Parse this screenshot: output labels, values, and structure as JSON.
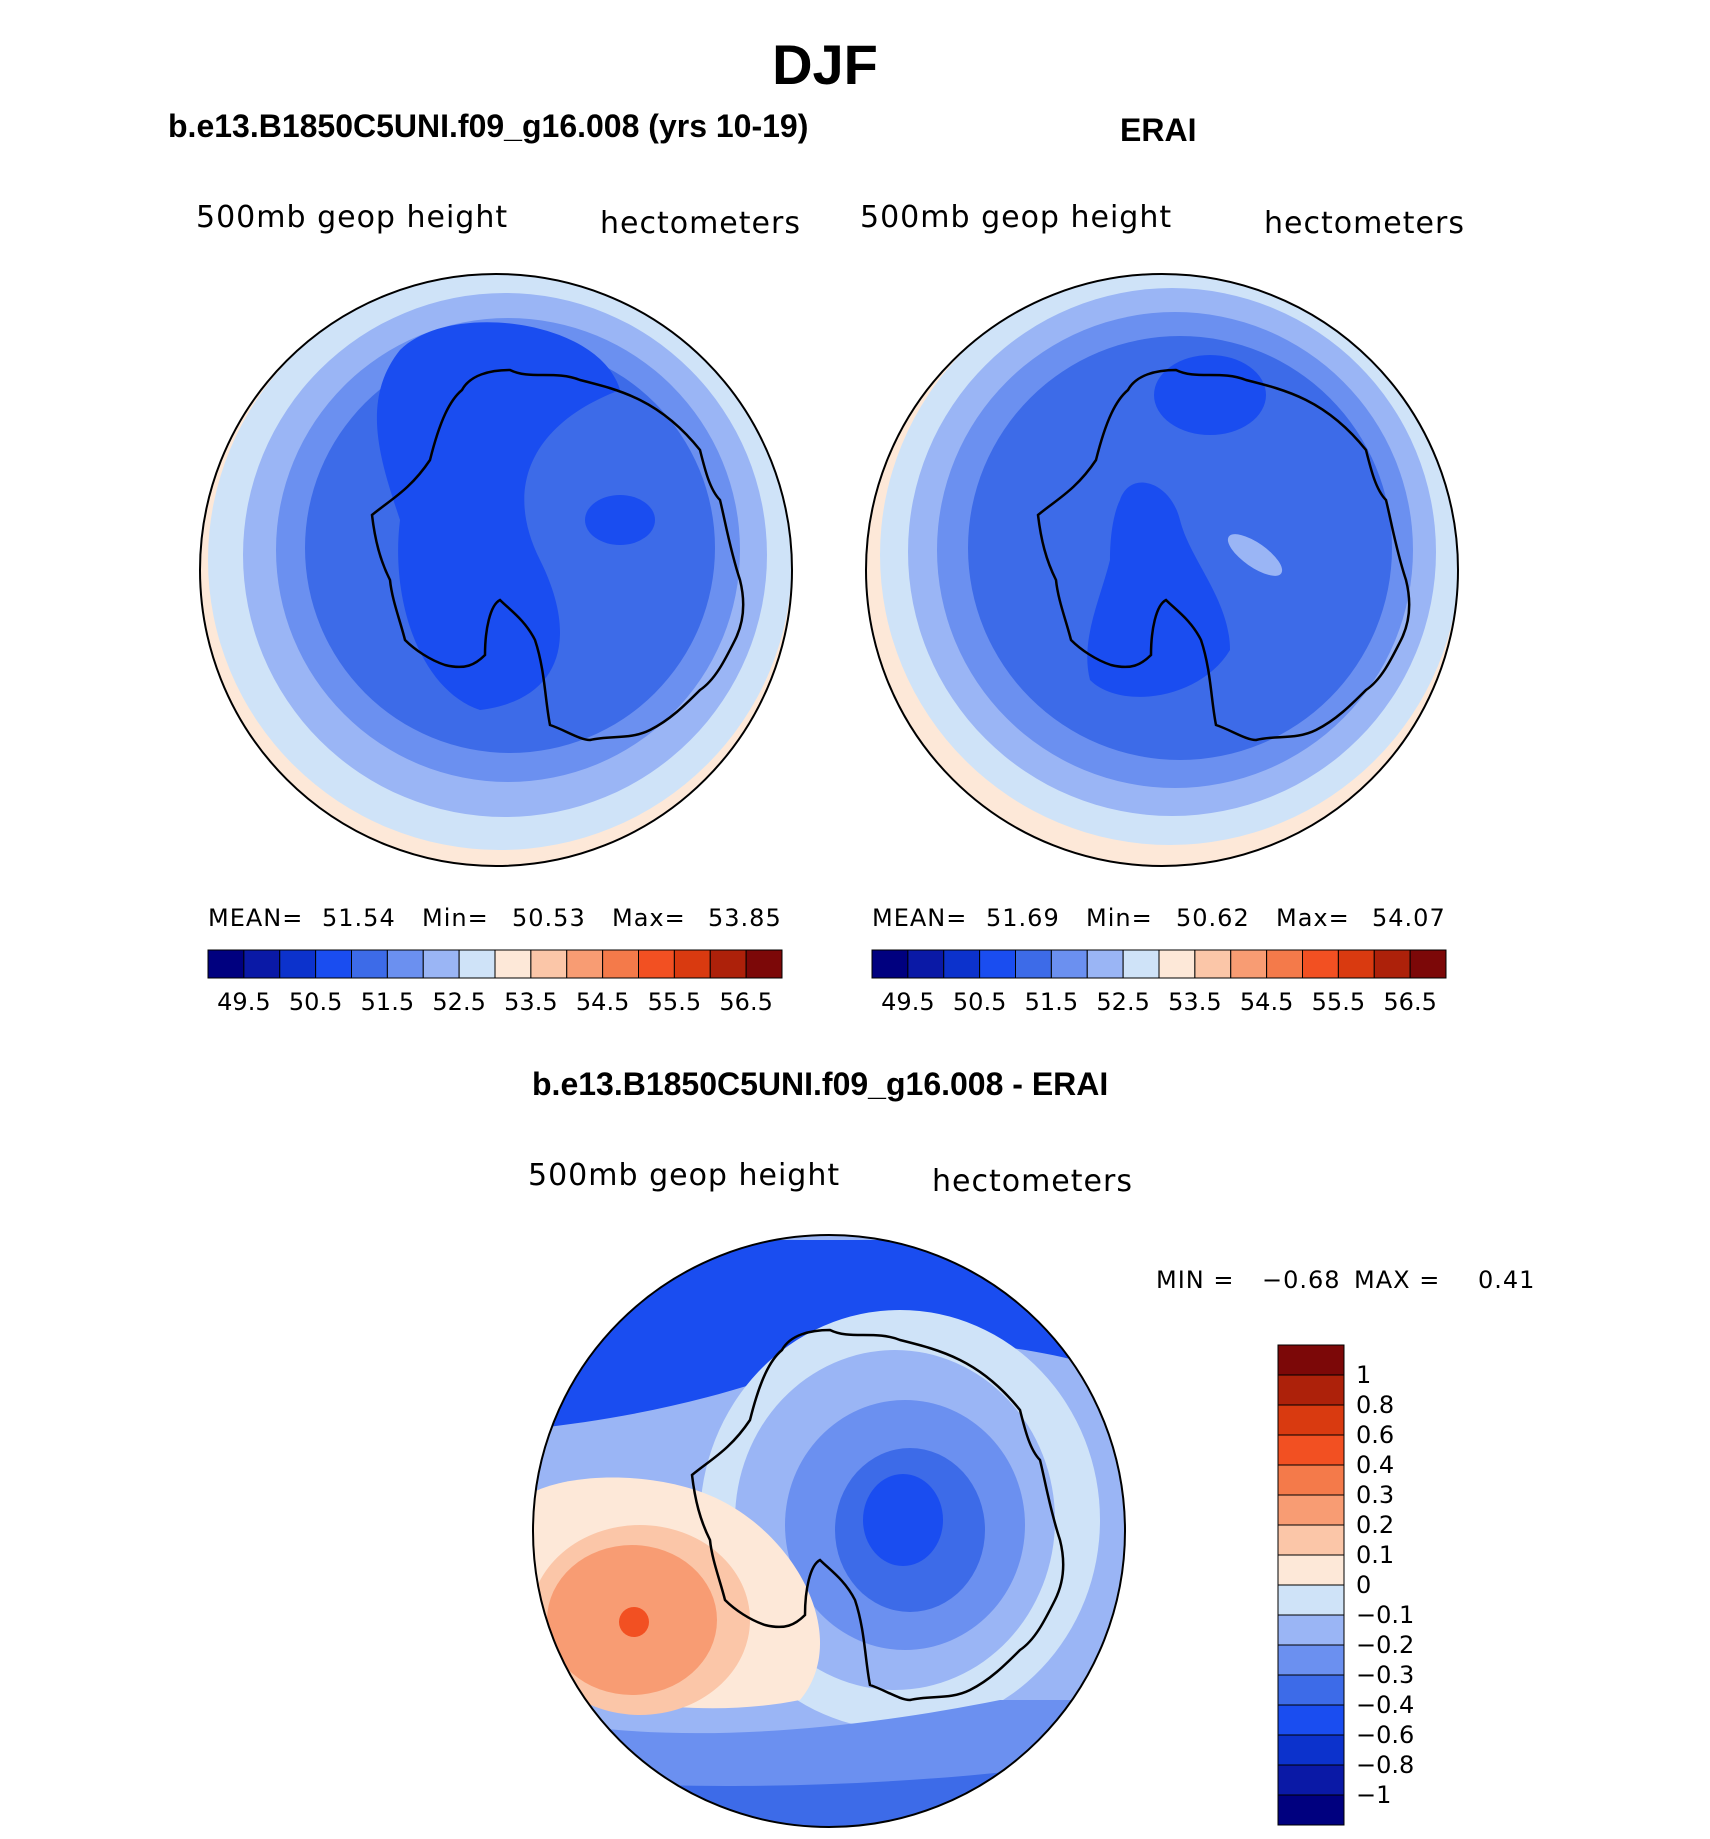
{
  "page_title": "DJF",
  "panels": [
    {
      "title": "b.e13.B1850C5UNI.f09_g16.008 (yrs 10-19)",
      "left_label": "500mb  geop  height",
      "right_label": "hectometers",
      "stats": {
        "mean_label": "MEAN=",
        "mean": "51.54",
        "min_label": "Min=",
        "min": "50.53",
        "max_label": "Max=",
        "max": "53.85"
      }
    },
    {
      "title": "ERAI",
      "left_label": "500mb  geop  height",
      "right_label": "hectometers",
      "stats": {
        "mean_label": "MEAN=",
        "mean": "51.69",
        "min_label": "Min=",
        "min": "50.62",
        "max_label": "Max=",
        "max": "54.07"
      }
    }
  ],
  "diff_panel": {
    "title": "b.e13.B1850C5UNI.f09_g16.008 - ERAI",
    "left_label": "500mb  geop  height",
    "right_label": "hectometers",
    "min_label": "MIN  =",
    "min": "−0.68",
    "max_label": "MAX  =",
    "max": "0.41"
  },
  "colorbar_main": {
    "colors": [
      "#00007f",
      "#0a19a6",
      "#0c32cc",
      "#1a4df0",
      "#3d6be8",
      "#6b90f0",
      "#9ab5f5",
      "#cfe3f8",
      "#fde8d8",
      "#fbc6a8",
      "#f89c73",
      "#f47a4a",
      "#f25022",
      "#d93a10",
      "#ad210a",
      "#7c0808"
    ],
    "tick_labels": [
      "49.5",
      "50.5",
      "51.5",
      "52.5",
      "53.5",
      "54.5",
      "55.5",
      "56.5"
    ]
  },
  "colorbar_diff": {
    "colors": [
      "#00007f",
      "#0a19a6",
      "#0c32cc",
      "#1a4df0",
      "#3d6be8",
      "#6b90f0",
      "#9ab5f5",
      "#cfe3f8",
      "#fde8d8",
      "#fbc6a8",
      "#f89c73",
      "#f47a4a",
      "#f25022",
      "#d93a10",
      "#ad210a",
      "#7c0808"
    ],
    "tick_labels": [
      "−1",
      "−0.8",
      "−0.6",
      "−0.4",
      "−0.3",
      "−0.2",
      "−0.1",
      "0",
      "0.1",
      "0.2",
      "0.3",
      "0.4",
      "0.6",
      "0.8",
      "1"
    ]
  }
}
